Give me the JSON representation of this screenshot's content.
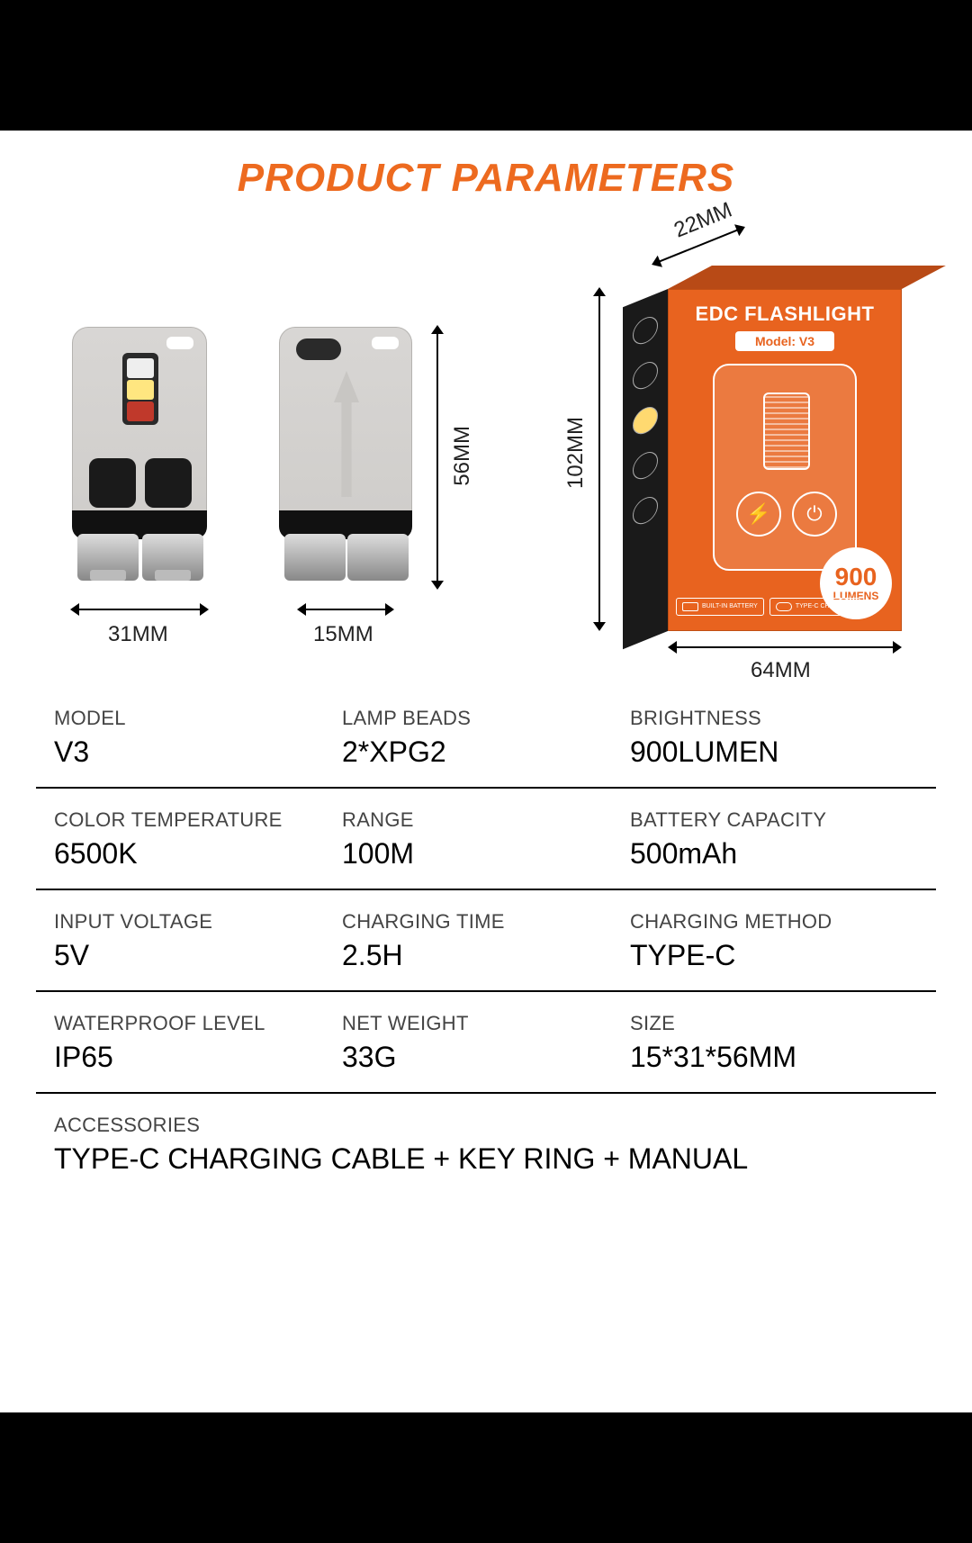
{
  "colors": {
    "accent": "#e8631f",
    "title": "#ed6a1f",
    "text": "#000000",
    "label": "#444444",
    "divider": "#000000",
    "box_side": "#1a1a1a",
    "page_bg": "#ffffff",
    "letterbox": "#000000"
  },
  "title": {
    "text": "PRODUCT PARAMETERS",
    "fontsize": 44,
    "color": "#ed6a1f"
  },
  "dimensions": {
    "front_width": "31MM",
    "side_width": "15MM",
    "height": "56MM",
    "box_depth": "22MM",
    "box_height": "102MM",
    "box_width": "64MM"
  },
  "package": {
    "title": "EDC FLASHLIGHT",
    "model_label": "Model: V3",
    "lumens_number": "900",
    "lumens_unit": "LUMENS",
    "badge1": "BUILT-IN\nBATTERY",
    "badge2": "TYPE-C\nCHARGING"
  },
  "specs": {
    "rows": [
      [
        {
          "label": "MODEL",
          "value": "V3"
        },
        {
          "label": "LAMP BEADS",
          "value": "2*XPG2"
        },
        {
          "label": "BRIGHTNESS",
          "value": "900LUMEN"
        }
      ],
      [
        {
          "label": "COLOR TEMPERATURE",
          "value": "6500K"
        },
        {
          "label": "RANGE",
          "value": "100M"
        },
        {
          "label": "BATTERY CAPACITY",
          "value": "500mAh"
        }
      ],
      [
        {
          "label": "INPUT VOLTAGE",
          "value": "5V"
        },
        {
          "label": "CHARGING TIME",
          "value": "2.5H"
        },
        {
          "label": "CHARGING METHOD",
          "value": "TYPE-C"
        }
      ],
      [
        {
          "label": "WATERPROOF LEVEL",
          "value": "IP65"
        },
        {
          "label": "NET WEIGHT",
          "value": "33G"
        },
        {
          "label": "SIZE",
          "value": "15*31*56MM"
        }
      ],
      [
        {
          "label": "ACCESSORIES",
          "value": "TYPE-C CHARGING CABLE + KEY RING + MANUAL",
          "wide": true
        }
      ]
    ],
    "label_fontsize": 22,
    "value_fontsize": 32
  }
}
